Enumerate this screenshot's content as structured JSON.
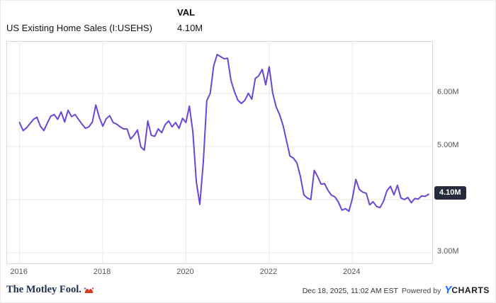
{
  "header": {
    "title": "US Existing Home Sales (I:USEHS)",
    "val_label": "VAL",
    "val_value": "4.10M"
  },
  "badge": {
    "label": "4.10M"
  },
  "footer": {
    "logo_text": "The Motley Fool.",
    "timestamp": "Dec 18, 2025, 11:02 AM EST",
    "powered_by": "Powered by",
    "ycharts_y": "Y",
    "ycharts_rest": "CHARTS"
  },
  "colors": {
    "line": "#6b46d4",
    "grid": "#e8e8e8",
    "border": "#d9d9d9",
    "badge_bg": "#252b3d",
    "ycharts_blue": "#0b6cff",
    "motley_red": "#d23e2a"
  },
  "chart_data": {
    "type": "line",
    "title": "US Existing Home Sales (I:USEHS)",
    "xlabel": "",
    "ylabel": "",
    "legend": "none",
    "grid": "on",
    "xlim": [
      2015.7,
      2025.92
    ],
    "ylim": [
      2.8,
      6.97
    ],
    "badge_value": 4.1,
    "x_ticks": [
      {
        "value": 2016,
        "label": "2016"
      },
      {
        "value": 2018,
        "label": "2018"
      },
      {
        "value": 2020,
        "label": "2020"
      },
      {
        "value": 2022,
        "label": "2022"
      },
      {
        "value": 2024,
        "label": "2024"
      }
    ],
    "y_ticks": [
      {
        "value": 6,
        "label": "6.00M"
      },
      {
        "value": 5,
        "label": "5.00M"
      },
      {
        "value": 3,
        "label": "3.00M"
      }
    ],
    "y_gridlines": [
      3,
      4,
      5,
      6
    ],
    "series": [
      {
        "name": "US Existing Home Sales",
        "units": "millions",
        "start_year": 2016,
        "step_months": 1,
        "values": [
          5.45,
          5.3,
          5.35,
          5.43,
          5.51,
          5.55,
          5.38,
          5.3,
          5.44,
          5.57,
          5.6,
          5.51,
          5.65,
          5.46,
          5.68,
          5.56,
          5.6,
          5.51,
          5.42,
          5.34,
          5.37,
          5.46,
          5.78,
          5.55,
          5.38,
          5.52,
          5.58,
          5.45,
          5.42,
          5.37,
          5.33,
          5.33,
          5.14,
          5.21,
          5.31,
          4.99,
          4.93,
          5.48,
          5.21,
          5.19,
          5.33,
          5.26,
          5.41,
          5.48,
          5.37,
          5.45,
          5.34,
          5.53,
          5.45,
          5.76,
          5.27,
          4.33,
          3.91,
          4.7,
          5.86,
          6.0,
          6.52,
          6.73,
          6.69,
          6.65,
          6.66,
          6.24,
          6.03,
          5.87,
          5.81,
          5.87,
          6.0,
          5.89,
          6.28,
          6.33,
          6.45,
          6.16,
          6.5,
          6.01,
          5.75,
          5.6,
          5.4,
          5.11,
          4.82,
          4.78,
          4.69,
          4.44,
          4.09,
          4.03,
          4.0,
          4.55,
          4.43,
          4.29,
          4.3,
          4.17,
          4.08,
          4.05,
          3.95,
          3.8,
          3.83,
          3.78,
          4.02,
          4.38,
          4.19,
          4.14,
          4.12,
          3.9,
          3.96,
          3.87,
          3.85,
          3.97,
          4.17,
          4.25,
          4.09,
          4.27,
          4.03,
          4.0,
          4.04,
          3.94,
          4.02,
          4.01,
          4.07,
          4.06,
          4.1
        ]
      }
    ]
  }
}
